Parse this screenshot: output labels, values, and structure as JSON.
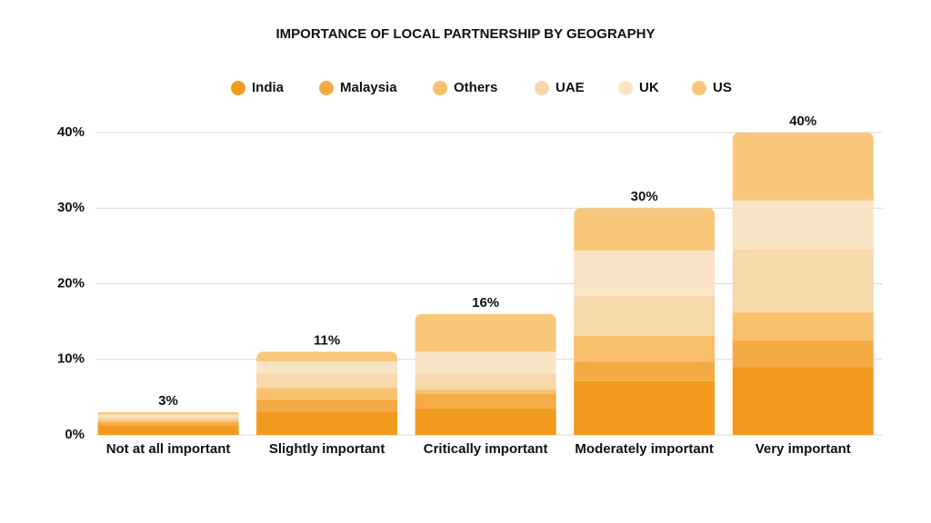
{
  "chart_data": {
    "type": "stacked_bar",
    "title": "IMPORTANCE OF LOCAL PARTNERSHIP BY GEOGRAPHY",
    "categories": [
      "Not at all important",
      "Slightly important",
      "Critically important",
      "Moderately important",
      "Very important"
    ],
    "series": [
      {
        "name": "India",
        "color": "#f29a1e",
        "values": [
          1.2,
          3.1,
          3.5,
          7.1,
          9.0
        ]
      },
      {
        "name": "Malaysia",
        "color": "#f5ab45",
        "values": [
          0.5,
          1.6,
          1.9,
          2.6,
          3.5
        ]
      },
      {
        "name": "Others",
        "color": "#f9c06b",
        "values": [
          0.3,
          1.5,
          0.6,
          3.4,
          3.7
        ]
      },
      {
        "name": "UAE",
        "color": "#f6d8ab",
        "values": [
          0.4,
          1.9,
          2.1,
          5.3,
          8.4
        ]
      },
      {
        "name": "UK",
        "color": "#fae4c6",
        "values": [
          0.3,
          1.6,
          2.9,
          6.0,
          6.4
        ]
      },
      {
        "name": "US",
        "color": "#f9c77a",
        "values": [
          0.3,
          1.3,
          5.0,
          5.6,
          9.0
        ]
      }
    ],
    "totals": {
      "values": [
        3,
        11,
        16,
        30,
        40
      ],
      "value_labels": [
        "3%",
        "11%",
        "16%",
        "30%",
        "40%"
      ]
    },
    "ylim": [
      0,
      40
    ],
    "yticks": [
      {
        "value": 0,
        "label": "0%"
      },
      {
        "value": 10,
        "label": "10%"
      },
      {
        "value": 20,
        "label": "20%"
      },
      {
        "value": 30,
        "label": "30%"
      },
      {
        "value": 40,
        "label": "40%"
      }
    ],
    "grid": true,
    "legend": "top"
  }
}
